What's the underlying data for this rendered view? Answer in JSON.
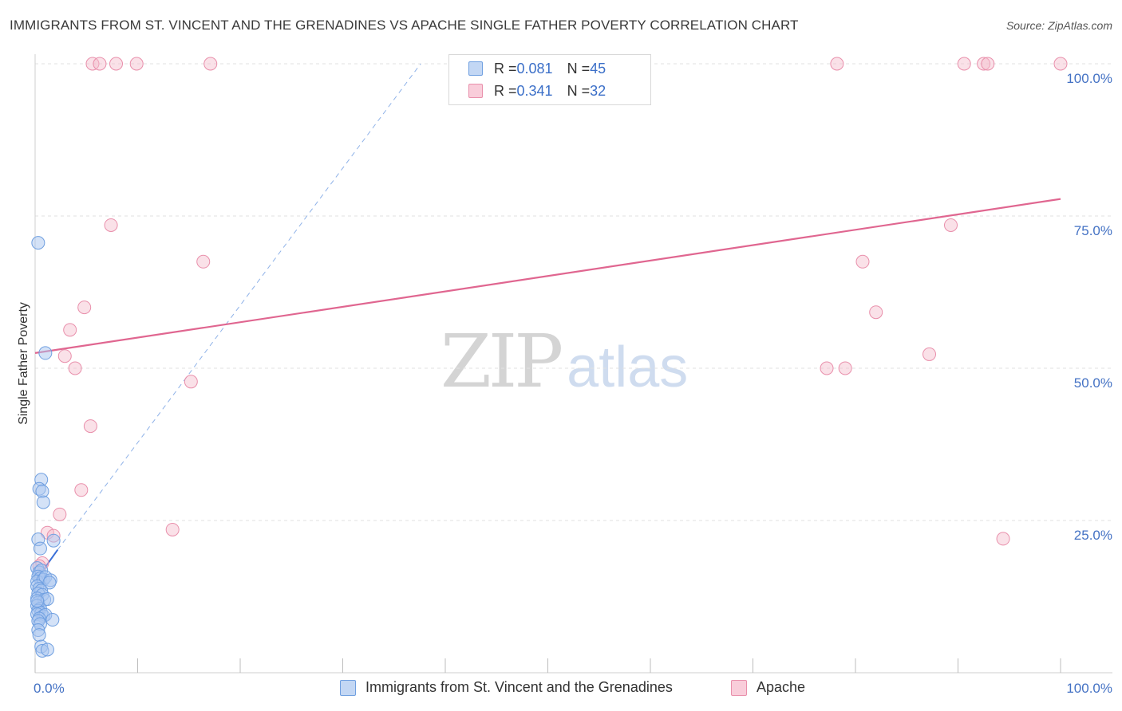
{
  "title": "IMMIGRANTS FROM ST. VINCENT AND THE GRENADINES VS APACHE SINGLE FATHER POVERTY CORRELATION CHART",
  "source": "Source: ZipAtlas.com",
  "watermark": {
    "zip": "ZIP",
    "atlas": "atlas"
  },
  "legend": {
    "rows": [
      {
        "r_label": "R = ",
        "r_value": "0.081",
        "n_label": "N = ",
        "n_value": "45"
      },
      {
        "r_label": "R = ",
        "r_value": "0.341",
        "n_label": "N = ",
        "n_value": "32"
      }
    ]
  },
  "colors": {
    "blue_fill": "#a9c6ef",
    "blue_stroke": "#6f9fe0",
    "blue_line": "#3a6fd8",
    "pink_fill": "#f5bccd",
    "pink_stroke": "#e98fab",
    "pink_line": "#e06690",
    "grid": "#e2e2e2",
    "axis_text": "#4472c4"
  },
  "chart_data": {
    "type": "scatter",
    "title": "IMMIGRANTS FROM ST. VINCENT AND THE GRENADINES VS APACHE SINGLE FATHER POVERTY CORRELATION CHART",
    "xlabel": "",
    "ylabel": "Single Father Poverty",
    "xlim": [
      0,
      100
    ],
    "ylim": [
      0,
      100
    ],
    "x_tick_labels": [
      "0.0%",
      "100.0%"
    ],
    "y_tick_labels": [
      "25.0%",
      "50.0%",
      "75.0%",
      "100.0%"
    ],
    "y_ticks": [
      25,
      50,
      75,
      100
    ],
    "grid": true,
    "legend_position": "top-center",
    "series": [
      {
        "name": "Immigrants from St. Vincent and the Grenadines",
        "color": "#a9c6ef",
        "points": [
          [
            0.3,
            70.6
          ],
          [
            1.0,
            52.5
          ],
          [
            0.6,
            31.7
          ],
          [
            0.4,
            30.2
          ],
          [
            0.7,
            29.8
          ],
          [
            0.8,
            28.0
          ],
          [
            1.8,
            21.7
          ],
          [
            0.3,
            21.9
          ],
          [
            0.5,
            20.4
          ],
          [
            0.2,
            17.2
          ],
          [
            0.4,
            16.5
          ],
          [
            0.6,
            16.8
          ],
          [
            0.3,
            15.8
          ],
          [
            0.5,
            15.5
          ],
          [
            0.2,
            15.0
          ],
          [
            0.8,
            15.3
          ],
          [
            1.0,
            15.7
          ],
          [
            1.5,
            15.2
          ],
          [
            1.4,
            14.8
          ],
          [
            0.2,
            14.2
          ],
          [
            0.4,
            13.8
          ],
          [
            0.6,
            13.5
          ],
          [
            0.3,
            13.0
          ],
          [
            0.7,
            12.8
          ],
          [
            0.2,
            12.2
          ],
          [
            0.9,
            12.0
          ],
          [
            0.3,
            11.5
          ],
          [
            1.2,
            12.1
          ],
          [
            0.2,
            11.0
          ],
          [
            0.5,
            10.5
          ],
          [
            0.3,
            10.2
          ],
          [
            0.6,
            9.8
          ],
          [
            0.2,
            9.6
          ],
          [
            0.8,
            9.3
          ],
          [
            1.0,
            9.5
          ],
          [
            0.4,
            8.9
          ],
          [
            0.3,
            8.5
          ],
          [
            1.7,
            8.7
          ],
          [
            0.5,
            8.0
          ],
          [
            0.3,
            7.0
          ],
          [
            0.4,
            6.2
          ],
          [
            0.6,
            4.3
          ],
          [
            0.7,
            3.6
          ],
          [
            1.2,
            3.8
          ],
          [
            0.2,
            11.8
          ]
        ],
        "trendline": {
          "x": [
            0.0,
            2.2
          ],
          "y": [
            15.0,
            20.2
          ],
          "style": "solid"
        },
        "trendline_extension": {
          "x": [
            2.2,
            37.6
          ],
          "y": [
            20.2,
            100.0
          ],
          "style": "dashed"
        }
      },
      {
        "name": "Apache",
        "color": "#f5bccd",
        "points": [
          [
            5.6,
            100.0
          ],
          [
            6.3,
            100.0
          ],
          [
            7.9,
            100.0
          ],
          [
            9.9,
            100.0
          ],
          [
            17.1,
            100.0
          ],
          [
            78.2,
            100.0
          ],
          [
            90.6,
            100.0
          ],
          [
            92.5,
            100.0
          ],
          [
            92.9,
            100.0
          ],
          [
            100.0,
            100.0
          ],
          [
            7.4,
            73.5
          ],
          [
            16.4,
            67.5
          ],
          [
            89.3,
            73.5
          ],
          [
            80.7,
            67.5
          ],
          [
            82.0,
            59.2
          ],
          [
            4.8,
            60.0
          ],
          [
            3.4,
            56.3
          ],
          [
            2.9,
            52.0
          ],
          [
            3.9,
            50.0
          ],
          [
            15.2,
            47.8
          ],
          [
            5.4,
            40.5
          ],
          [
            77.2,
            50.0
          ],
          [
            79.0,
            50.0
          ],
          [
            87.2,
            52.3
          ],
          [
            4.5,
            30.0
          ],
          [
            2.4,
            26.0
          ],
          [
            13.4,
            23.5
          ],
          [
            1.2,
            23.0
          ],
          [
            1.8,
            22.5
          ],
          [
            94.4,
            22.0
          ],
          [
            0.7,
            18.0
          ],
          [
            0.4,
            17.5
          ]
        ],
        "trendline": {
          "x": [
            0.0,
            100.0
          ],
          "y": [
            52.5,
            77.8
          ],
          "style": "solid"
        }
      }
    ]
  },
  "bottom_legend": [
    {
      "label": "Immigrants from St. Vincent and the Grenadines"
    },
    {
      "label": "Apache"
    }
  ]
}
